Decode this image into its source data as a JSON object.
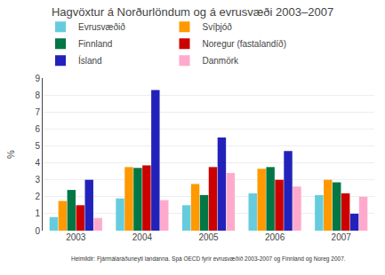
{
  "chart_data": {
    "type": "bar",
    "title": "Hagvöxtur á Norðurlöndum og á evrusvæði 2003–2007",
    "categories": [
      "2003",
      "2004",
      "2005",
      "2006",
      "2007"
    ],
    "series": [
      {
        "name": "Evrusvæðið",
        "color": "#66ccdd",
        "values": [
          0.8,
          1.9,
          1.5,
          2.2,
          2.1
        ]
      },
      {
        "name": "Svíþjóð",
        "color": "#ff9900",
        "values": [
          1.75,
          3.75,
          2.75,
          3.65,
          3.0
        ]
      },
      {
        "name": "Finnland",
        "color": "#007744",
        "values": [
          2.4,
          3.7,
          2.1,
          3.75,
          2.85
        ]
      },
      {
        "name": "Noregur (fastalandíð)",
        "color": "#cc0000",
        "values": [
          1.5,
          3.85,
          3.75,
          3.0,
          2.2
        ]
      },
      {
        "name": "Ísland",
        "color": "#2222bb",
        "values": [
          3.0,
          8.3,
          5.5,
          4.7,
          1.0
        ]
      },
      {
        "name": "Danmörk",
        "color": "#ffaacc",
        "values": [
          0.75,
          1.8,
          3.4,
          2.6,
          2.0
        ]
      }
    ],
    "ylabel": "%",
    "ylim": [
      0,
      9
    ],
    "yticks": [
      0,
      1,
      2,
      3,
      4,
      5,
      6,
      7,
      8,
      9
    ],
    "grid": true,
    "legend": "top",
    "annotations": [
      "Heimildir: Fjármálaráðuneyti landanna. Spá OECD fyrir evrusvæðið 2003-2007 og Finnland og Noreg 2007."
    ]
  }
}
